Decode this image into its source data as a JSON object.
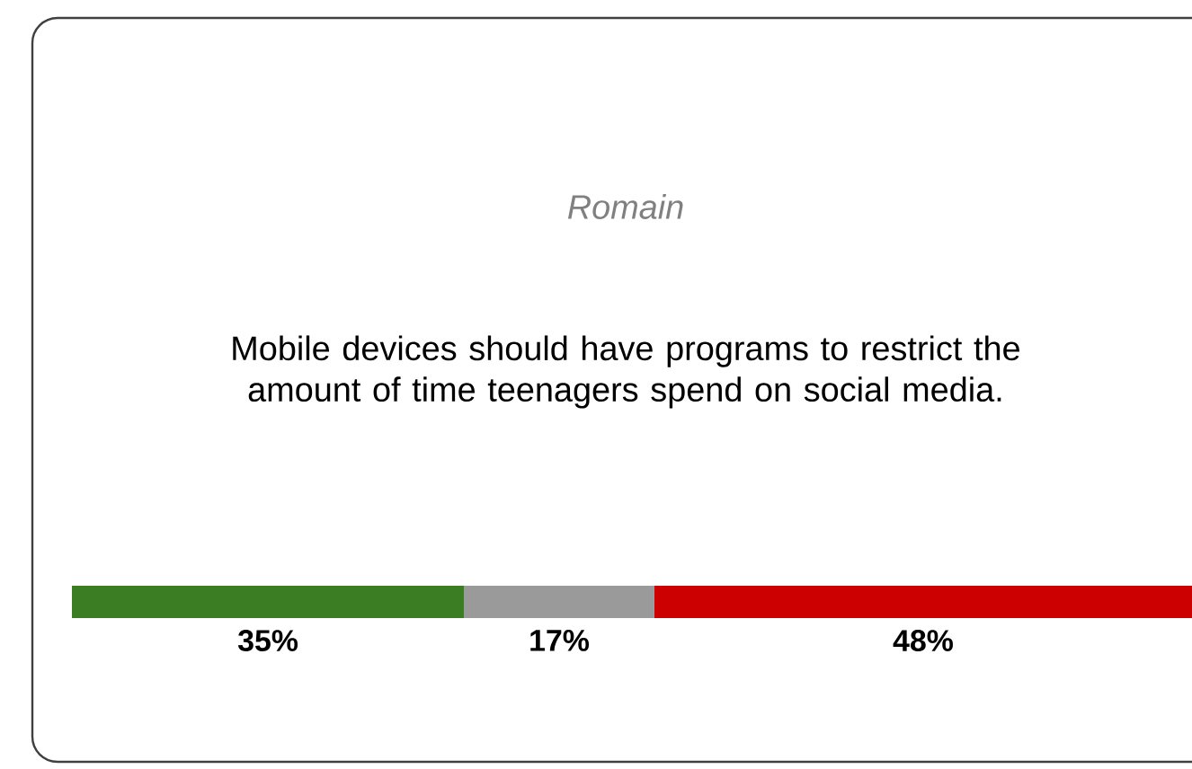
{
  "chart_data": {
    "type": "bar",
    "title": "Romain",
    "subtitle": "Mobile devices should have programs to restrict the amount of time teenagers spend on social media.",
    "orientation": "horizontal",
    "stacked": true,
    "categories": [
      null
    ],
    "series": [
      {
        "color": "#3a7d22",
        "values": [
          35
        ],
        "value_labels": [
          "35%"
        ]
      },
      {
        "color": "#9a9a9a",
        "values": [
          17
        ],
        "value_labels": [
          "17%"
        ]
      },
      {
        "color": "#cc0000",
        "values": [
          48
        ],
        "value_labels": [
          "48%"
        ]
      }
    ]
  }
}
